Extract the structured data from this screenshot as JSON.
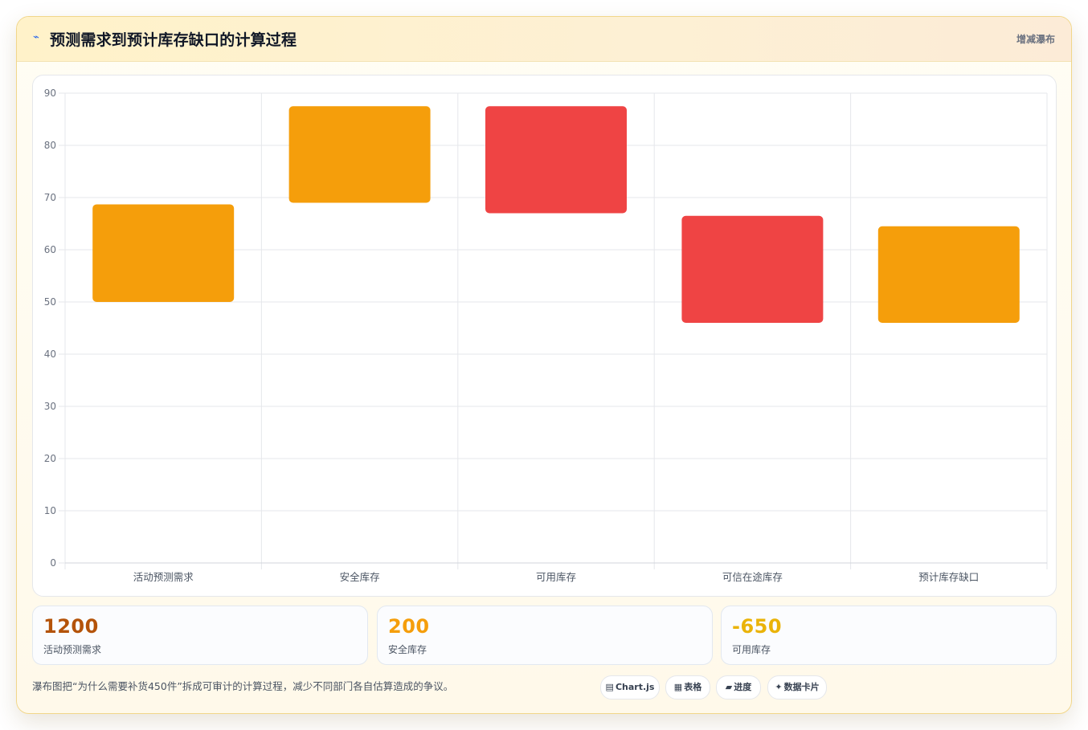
{
  "header": {
    "icon": "lightning-icon",
    "title": "预测需求到预计库存缺口的计算过程",
    "chart_type_label": "增减瀑布"
  },
  "colors": {
    "increase": "#f59e0b",
    "decrease": "#ef4444",
    "grid": "#e5e7eb",
    "axis_text": "#6b7280"
  },
  "chart_data": {
    "type": "bar",
    "subtype": "floating-bar",
    "title": "",
    "xlabel": "",
    "ylabel": "",
    "categories": [
      "活动预测需求",
      "安全库存",
      "可用库存",
      "可信在途库存",
      "预计库存缺口"
    ],
    "ranges": [
      [
        50,
        68.7
      ],
      [
        69,
        87.5
      ],
      [
        67,
        87.5
      ],
      [
        46,
        66.5
      ],
      [
        46,
        64.5
      ]
    ],
    "colors": [
      "#f59e0b",
      "#f59e0b",
      "#ef4444",
      "#ef4444",
      "#f59e0b"
    ],
    "ylim": [
      0,
      90
    ],
    "yticks": [
      0,
      10,
      20,
      30,
      40,
      50,
      60,
      70,
      80,
      90
    ],
    "grid": true,
    "legend": "none"
  },
  "stats": [
    {
      "value": "1200",
      "label": "活动预测需求",
      "color": "#b45309"
    },
    {
      "value": "200",
      "label": "安全库存",
      "color": "#f59e0b"
    },
    {
      "value": "-650",
      "label": "可用库存",
      "color": "#eab308"
    }
  ],
  "footer": {
    "note": "瀑布图把“为什么需要补货450件”拆成可审计的计算过程，减少不同部门各自估算造成的争议。",
    "tags": [
      {
        "icon": "chart-icon",
        "glyph": "▤",
        "label": "Chart.js"
      },
      {
        "icon": "table-icon",
        "glyph": "▦",
        "label": "表格"
      },
      {
        "icon": "progress-icon",
        "glyph": "▰",
        "label": "进度"
      },
      {
        "icon": "sparkle-icon",
        "glyph": "✦",
        "label": "数据卡片"
      }
    ]
  }
}
